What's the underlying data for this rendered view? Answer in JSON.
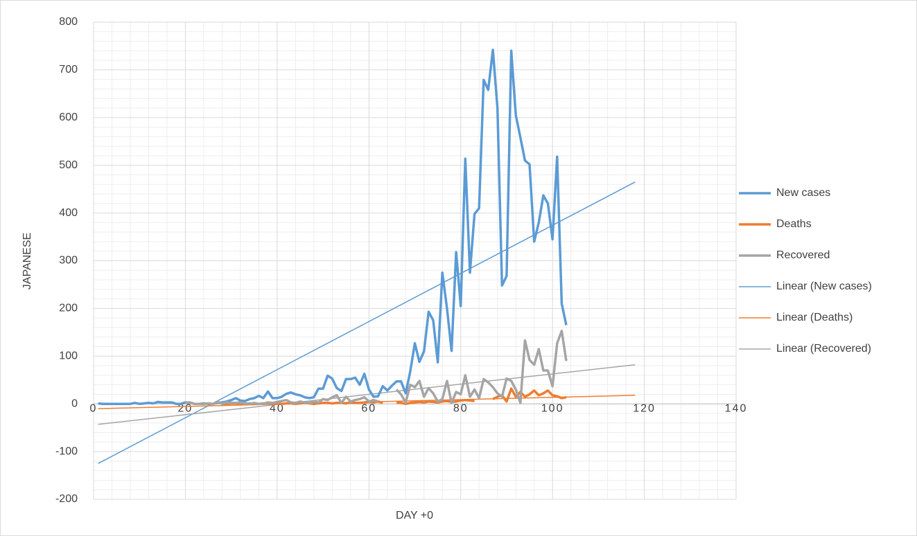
{
  "chart_data": {
    "type": "line",
    "x_label": "DAY +0",
    "y_label": "JAPANESE",
    "xlim": [
      0,
      140
    ],
    "xticks": [
      0,
      20,
      40,
      60,
      80,
      100,
      120,
      140
    ],
    "ylim": [
      -200,
      800
    ],
    "yticks": [
      -200,
      -100,
      0,
      100,
      200,
      300,
      400,
      500,
      600,
      700,
      800
    ],
    "grid": true,
    "minor_grid": true,
    "legend": "right",
    "x": [
      1,
      2,
      3,
      4,
      5,
      6,
      7,
      8,
      9,
      10,
      11,
      12,
      13,
      14,
      15,
      16,
      17,
      18,
      19,
      20,
      21,
      22,
      23,
      24,
      25,
      26,
      27,
      28,
      29,
      30,
      31,
      32,
      33,
      34,
      35,
      36,
      37,
      38,
      39,
      40,
      41,
      42,
      43,
      44,
      45,
      46,
      47,
      48,
      49,
      50,
      51,
      52,
      53,
      54,
      55,
      56,
      57,
      58,
      59,
      60,
      61,
      62,
      63,
      64,
      65,
      66,
      67,
      68,
      69,
      70,
      71,
      72,
      73,
      74,
      75,
      76,
      77,
      78,
      79,
      80,
      81,
      82,
      83,
      84,
      85,
      86,
      87,
      88,
      89,
      90,
      91,
      92,
      93,
      94,
      95,
      96,
      97,
      98,
      99,
      100,
      101,
      102,
      103
    ],
    "series": [
      {
        "name": "New cases",
        "color": "#5b9bd5",
        "values": [
          1,
          0,
          0,
          0,
          0,
          0,
          0,
          0,
          2,
          0,
          1,
          2,
          1,
          4,
          3,
          3,
          3,
          0,
          0,
          3,
          2,
          0,
          0,
          1,
          0,
          0,
          2,
          3,
          5,
          8,
          12,
          7,
          6,
          10,
          12,
          17,
          12,
          26,
          12,
          12,
          15,
          21,
          24,
          20,
          18,
          14,
          12,
          14,
          32,
          32,
          59,
          53,
          33,
          27,
          52,
          52,
          55,
          40,
          63,
          30,
          15,
          16,
          37,
          28,
          38,
          47,
          47,
          22,
          68,
          127,
          88,
          110,
          193,
          175,
          87,
          275,
          200,
          111,
          318,
          205,
          514,
          275,
          398,
          410,
          679,
          658,
          742,
          620,
          248,
          268,
          740,
          605,
          558,
          510,
          502,
          340,
          380,
          437,
          420,
          345,
          518,
          210,
          165
        ]
      },
      {
        "name": "Deaths",
        "color": "#ed7d31",
        "values": [
          null,
          null,
          null,
          null,
          null,
          null,
          null,
          null,
          null,
          null,
          null,
          null,
          null,
          null,
          null,
          null,
          null,
          null,
          null,
          null,
          null,
          null,
          null,
          null,
          null,
          null,
          null,
          0,
          0,
          1,
          1,
          0,
          0,
          1,
          0,
          0,
          1,
          1,
          0,
          1,
          0,
          1,
          1,
          0,
          1,
          2,
          1,
          0,
          1,
          2,
          2,
          1,
          2,
          2,
          1,
          3,
          2,
          2,
          3,
          4,
          3,
          5,
          2,
          null,
          null,
          3,
          2,
          0,
          2,
          3,
          4,
          3,
          5,
          4,
          3,
          5,
          6,
          4,
          5,
          7,
          8,
          7,
          6,
          null,
          2,
          null,
          10,
          15,
          18,
          5,
          32,
          15,
          25,
          15,
          20,
          28,
          18,
          22,
          28,
          18,
          16,
          12,
          14
        ]
      },
      {
        "name": "Recovered",
        "color": "#a5a5a5",
        "values": [
          null,
          null,
          null,
          null,
          null,
          null,
          null,
          null,
          null,
          null,
          null,
          null,
          null,
          null,
          null,
          null,
          null,
          null,
          null,
          3,
          3,
          0,
          0,
          0,
          1,
          0,
          5,
          0,
          3,
          2,
          2,
          3,
          1,
          0,
          2,
          0,
          0,
          3,
          2,
          4,
          6,
          8,
          3,
          2,
          5,
          3,
          2,
          5,
          3,
          10,
          8,
          14,
          18,
          2,
          15,
          5,
          8,
          10,
          14,
          5,
          8,
          5,
          null,
          null,
          null,
          30,
          20,
          3,
          40,
          35,
          48,
          15,
          33,
          22,
          5,
          10,
          48,
          2,
          25,
          20,
          60,
          15,
          30,
          12,
          52,
          45,
          35,
          22,
          15,
          53,
          48,
          30,
          2,
          133,
          92,
          82,
          115,
          70,
          70,
          37,
          127,
          153,
          90
        ]
      }
    ],
    "trendlines": [
      {
        "name": "Linear (New cases)",
        "color": "#5b9bd5",
        "x": [
          1,
          118
        ],
        "values": [
          -125,
          465
        ]
      },
      {
        "name": "Linear (Deaths)",
        "color": "#ed7d31",
        "x": [
          1,
          118
        ],
        "values": [
          -10,
          18
        ]
      },
      {
        "name": "Linear (Recovered)",
        "color": "#a5a5a5",
        "x": [
          1,
          118
        ],
        "values": [
          -43,
          82
        ]
      }
    ]
  }
}
